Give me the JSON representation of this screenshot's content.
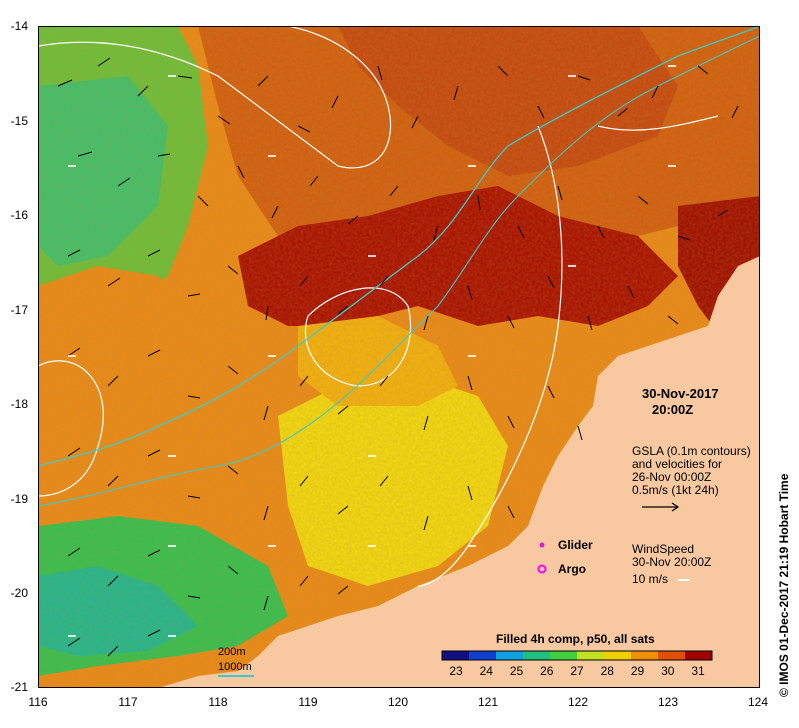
{
  "map": {
    "lat_labels": [
      "-14",
      "-15",
      "-16",
      "-17",
      "-18",
      "-19",
      "-20",
      "-21"
    ],
    "lon_labels": [
      "116",
      "117",
      "118",
      "119",
      "120",
      "121",
      "122",
      "123",
      "124"
    ],
    "timestamp": {
      "date": "30-Nov-2017",
      "time": "20:00Z"
    },
    "gsla": {
      "line1": "GSLA (0.1m contours)",
      "line2": "and velocities for",
      "line3": "26-Nov 00:00Z",
      "line4": "0.5m/s (1kt 24h)"
    },
    "legend": {
      "glider": "Glider",
      "argo": "Argo",
      "glider_color": "#d020d0",
      "argo_color": "#ff00ff"
    },
    "wind": {
      "line1": "WindSpeed",
      "line2": "30-Nov 20:00Z",
      "line3": "10 m/s"
    },
    "depth": {
      "contour1": "200m",
      "contour2": "1000m",
      "contour2_color": "#40c8c8"
    },
    "colorbar": {
      "title": "Filled 4h comp, p50, all sats",
      "ticks": [
        "23",
        "24",
        "25",
        "26",
        "27",
        "28",
        "29",
        "30",
        "31"
      ],
      "colors": [
        "#101080",
        "#1040d0",
        "#10a0e0",
        "#20c080",
        "#40d040",
        "#c0e020",
        "#f0d000",
        "#f09000",
        "#e05000",
        "#a00000"
      ]
    },
    "credit": "©  IMOS 01-Dec-2017 21:19 Hobart Time",
    "palette": {
      "land": "#f8c8a0",
      "warm": "#e07a10",
      "hot": "#a01000",
      "mid": "#f0a010",
      "cool": "#40c040",
      "yellow": "#f0e020"
    }
  }
}
